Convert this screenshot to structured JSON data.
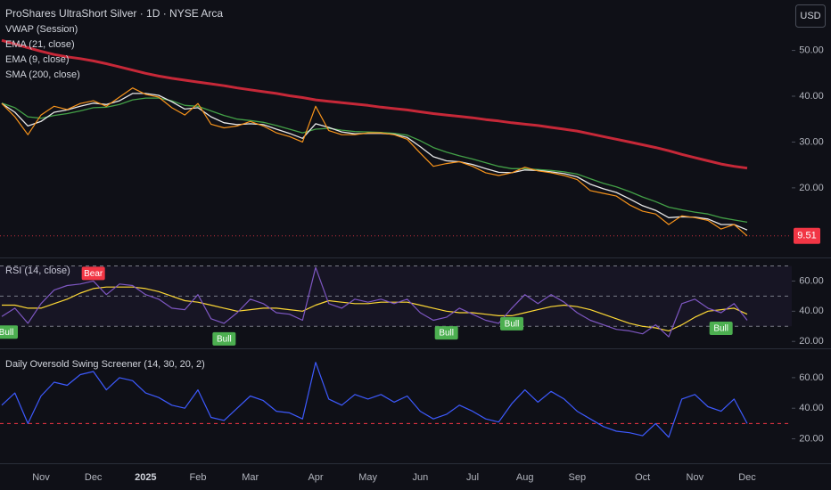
{
  "chart_data": [
    {
      "type": "line",
      "title": "ProShares UltraShort Silver · 1D · NYSE Arca",
      "currency": "USD",
      "indicators": [
        "VWAP (Session)"
      ],
      "categories": [
        null,
        null,
        null,
        "Nov",
        null,
        null,
        null,
        "Dec",
        null,
        null,
        null,
        "2025",
        null,
        null,
        null,
        "Feb",
        null,
        null,
        null,
        "Mar",
        null,
        null,
        null,
        null,
        "Apr",
        null,
        null,
        null,
        "May",
        null,
        null,
        null,
        "Jun",
        null,
        null,
        null,
        "Jul",
        null,
        null,
        null,
        "Aug",
        null,
        null,
        null,
        "Sep",
        null,
        null,
        null,
        null,
        "Oct",
        null,
        null,
        null,
        "Nov",
        null,
        null,
        null,
        "Dec"
      ],
      "values": [
        38.4,
        35.5,
        31.6,
        35.9,
        37.8,
        37.1,
        38.4,
        39.0,
        37.8,
        39.8,
        41.8,
        40.4,
        39.8,
        37.5,
        35.9,
        38.4,
        33.9,
        33.1,
        33.5,
        34.5,
        33.5,
        32.0,
        31.2,
        30.0,
        37.8,
        32.5,
        31.6,
        31.6,
        32.0,
        32.0,
        31.6,
        30.6,
        27.6,
        24.7,
        25.3,
        25.7,
        24.7,
        23.3,
        22.7,
        23.3,
        24.5,
        23.7,
        23.3,
        22.7,
        21.8,
        19.4,
        18.8,
        18.2,
        16.3,
        14.9,
        14.3,
        12.0,
        13.9,
        13.5,
        12.9,
        11.0,
        12.0,
        9.51
      ],
      "color": "#f7931a",
      "series": [
        {
          "name": "EMA (21, close)",
          "color": "#43a047",
          "values": [
            38.5,
            37.5,
            35.5,
            35.2,
            35.8,
            36.2,
            36.8,
            37.5,
            37.6,
            38.2,
            39.2,
            39.6,
            39.6,
            39.0,
            38.0,
            37.8,
            36.8,
            35.8,
            35.0,
            34.7,
            34.3,
            33.6,
            32.8,
            32.0,
            32.8,
            33.0,
            32.6,
            32.3,
            32.2,
            32.1,
            31.9,
            31.5,
            30.3,
            28.8,
            27.8,
            27.0,
            26.3,
            25.5,
            24.7,
            24.2,
            24.2,
            24.0,
            23.8,
            23.5,
            23.0,
            22.0,
            21.0,
            20.2,
            19.2,
            18.0,
            17.0,
            15.8,
            15.2,
            14.7,
            14.3,
            13.5,
            13.0,
            12.5
          ]
        },
        {
          "name": "EMA (9, close)",
          "color": "#e8e8e8",
          "values": [
            38.4,
            36.5,
            33.5,
            34.5,
            36.5,
            37.0,
            37.8,
            38.5,
            38.2,
            39.0,
            40.6,
            40.6,
            40.2,
            38.8,
            37.2,
            37.5,
            35.5,
            34.2,
            33.8,
            34.0,
            33.8,
            32.8,
            31.9,
            30.8,
            34.0,
            33.2,
            32.2,
            31.8,
            31.9,
            31.9,
            31.7,
            31.0,
            29.0,
            26.8,
            25.9,
            25.7,
            25.1,
            24.2,
            23.4,
            23.3,
            23.9,
            23.8,
            23.5,
            23.1,
            22.4,
            20.8,
            19.8,
            19.0,
            17.6,
            16.1,
            15.1,
            13.5,
            13.7,
            13.6,
            13.2,
            12.0,
            12.0,
            10.8
          ]
        },
        {
          "name": "SMA (200, close)",
          "color": "#c62838",
          "values": [
            52.2,
            51.4,
            50.6,
            49.8,
            49.1,
            48.6,
            48.2,
            47.7,
            47.1,
            46.4,
            45.7,
            45.0,
            44.4,
            43.9,
            43.5,
            43.1,
            42.7,
            42.3,
            41.8,
            41.4,
            41.0,
            40.6,
            40.1,
            39.7,
            39.2,
            38.9,
            38.6,
            38.3,
            38.0,
            37.6,
            37.3,
            37.0,
            36.6,
            36.2,
            35.9,
            35.6,
            35.3,
            34.9,
            34.6,
            34.2,
            33.9,
            33.6,
            33.2,
            32.8,
            32.4,
            31.8,
            31.2,
            30.6,
            30.0,
            29.4,
            28.8,
            28.1,
            27.3,
            26.6,
            25.9,
            25.2,
            24.7,
            24.3
          ]
        }
      ],
      "ylim": [
        5,
        61
      ],
      "yticks": [
        {
          "value": 20,
          "label": "20.00"
        },
        {
          "value": 30,
          "label": "30.00"
        },
        {
          "value": 40,
          "label": "40.00"
        },
        {
          "value": 50,
          "label": "50.00"
        }
      ]
    },
    {
      "type": "line",
      "title": "RSI (14, close)",
      "values": [
        36.5,
        42,
        32,
        45,
        54,
        57,
        58,
        60,
        51,
        58,
        57,
        51,
        48,
        42,
        41,
        51,
        35,
        32,
        39,
        48,
        45,
        39,
        38,
        34,
        69,
        45,
        42,
        48,
        46,
        48,
        45,
        48,
        39,
        34,
        36,
        42,
        38,
        34,
        32,
        42,
        51,
        45,
        51,
        46,
        39,
        34,
        31,
        28,
        27,
        25,
        31,
        23,
        45,
        48,
        42,
        39,
        45,
        34
      ],
      "color": "#7e57c2",
      "smoothing": [
        44,
        44,
        42,
        42,
        45,
        48,
        52,
        55,
        56,
        56,
        56,
        55,
        53,
        50,
        47,
        46,
        44,
        42,
        40,
        41,
        42,
        42,
        41,
        40,
        44,
        47,
        46,
        45,
        45,
        46,
        46,
        46,
        44,
        42,
        40,
        39,
        39,
        38,
        37,
        37,
        39,
        41,
        43,
        44,
        43,
        41,
        38,
        35,
        32,
        30,
        29,
        27,
        31,
        36,
        40,
        41,
        42,
        38
      ],
      "smoothing_color": "#fdd835",
      "signals": [
        "Bull",
        null,
        null,
        null,
        null,
        null,
        null,
        "Bear",
        null,
        null,
        null,
        null,
        null,
        null,
        null,
        null,
        null,
        "Bull",
        null,
        null,
        null,
        null,
        null,
        null,
        null,
        null,
        null,
        null,
        null,
        null,
        null,
        null,
        null,
        null,
        "Bull",
        null,
        null,
        null,
        null,
        "Bull",
        null,
        null,
        null,
        null,
        null,
        null,
        null,
        null,
        null,
        null,
        null,
        null,
        null,
        null,
        null,
        "Bull",
        null,
        null
      ],
      "levels": [
        70,
        50,
        30
      ],
      "level_color": "#787b86",
      "ylim": [
        16,
        75
      ],
      "yticks": [
        {
          "value": 20,
          "label": "20.00"
        },
        {
          "value": 40,
          "label": "40.00"
        },
        {
          "value": 60,
          "label": "60.00"
        }
      ]
    },
    {
      "type": "line",
      "title": "Daily Oversold Swing Screener (14, 30, 20, 2)",
      "values": [
        42,
        50,
        30,
        48,
        57,
        55,
        62,
        64,
        52,
        60,
        58,
        50,
        47,
        42,
        40,
        52,
        34,
        32,
        40,
        48,
        45,
        38,
        37,
        33,
        70,
        46,
        42,
        49,
        46,
        49,
        44,
        48,
        38,
        33,
        36,
        42,
        38,
        33,
        31,
        43,
        52,
        44,
        51,
        46,
        38,
        33,
        28,
        25,
        24,
        22,
        30,
        21,
        46,
        49,
        41,
        38,
        46,
        30
      ],
      "color": "#3d5afe",
      "levels": [
        30
      ],
      "level_color": "#f23645",
      "ylim": [
        4,
        78
      ],
      "yticks": [
        {
          "value": 20,
          "label": "20.00"
        },
        {
          "value": 40,
          "label": "40.00"
        },
        {
          "value": 60,
          "label": "60.00"
        }
      ]
    }
  ]
}
